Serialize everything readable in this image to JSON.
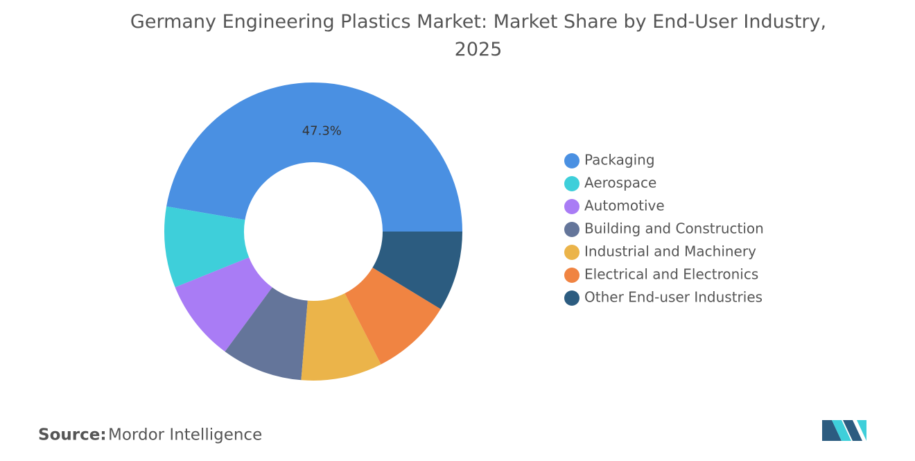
{
  "chart_data": {
    "type": "donut",
    "title": "Germany Engineering Plastics Market: Market Share by End-User Industry, 2025",
    "categories": [
      "Packaging",
      "Aerospace",
      "Automotive",
      "Building and Construction",
      "Industrial and Machinery",
      "Electrical and Electronics",
      "Other End-user Industries"
    ],
    "values": [
      47.3,
      8.8,
      8.8,
      8.8,
      8.8,
      8.8,
      8.7
    ],
    "value_labels": [
      "47.3%",
      null,
      null,
      null,
      null,
      null,
      null
    ],
    "colors": [
      "#4a90e2",
      "#3ecfda",
      "#a97cf5",
      "#64759a",
      "#ebb44a",
      "#f08442",
      "#2c5c80"
    ],
    "legend": "right"
  },
  "source": {
    "label": "Source:",
    "text": "Mordor Intelligence"
  }
}
